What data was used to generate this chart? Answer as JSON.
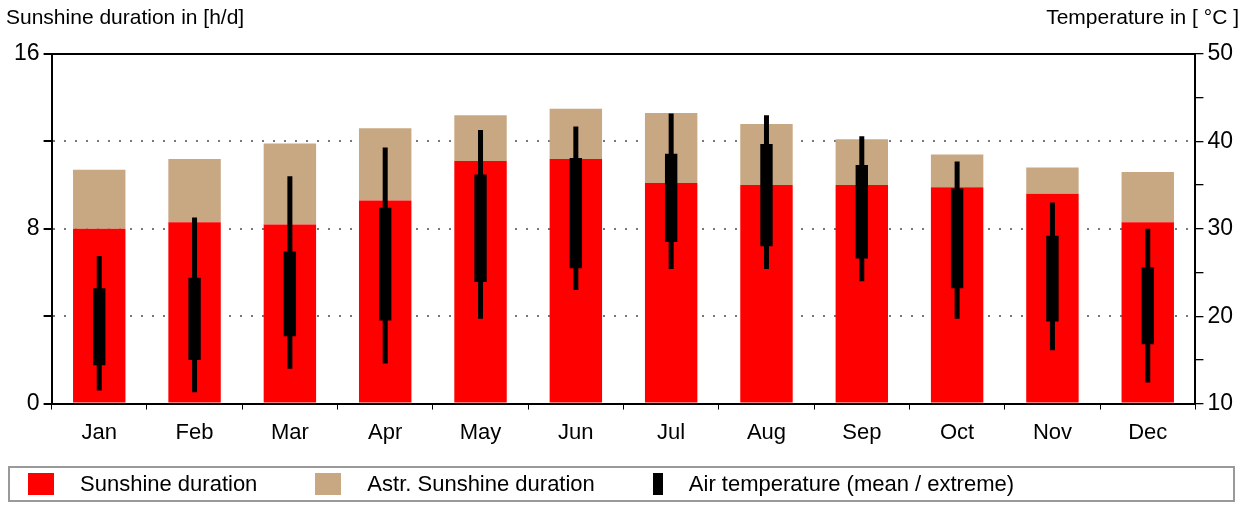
{
  "chart_data": {
    "type": "bar",
    "stacked": true,
    "ylabel": "Sunshine duration in [h/d]",
    "y2label": "Temperature in [ °C ]",
    "categories": [
      "Jan",
      "Feb",
      "Mar",
      "Apr",
      "May",
      "Jun",
      "Jul",
      "Aug",
      "Sep",
      "Oct",
      "Nov",
      "Dec"
    ],
    "series": [
      {
        "name": "Sunshine duration",
        "color": "#ff0000",
        "values": [
          8.0,
          8.3,
          8.2,
          9.3,
          11.1,
          11.2,
          10.1,
          10.0,
          10.0,
          9.9,
          9.6,
          8.3
        ]
      },
      {
        "name": "Astr. Sunshine duration",
        "color": "#c8a882",
        "values": [
          2.7,
          2.9,
          3.7,
          3.3,
          2.1,
          2.3,
          3.2,
          2.8,
          2.1,
          1.5,
          1.2,
          2.3
        ]
      },
      {
        "name": "Air temperature (mean / extreme)",
        "type": "candlestick",
        "axis": "y2",
        "color": "#000000",
        "ohlc": [
          [
            14.4,
            26.9,
            11.5,
            23.2
          ],
          [
            15.0,
            31.3,
            11.3,
            24.4
          ],
          [
            17.7,
            36.0,
            14.0,
            27.4
          ],
          [
            19.5,
            39.3,
            14.6,
            32.4
          ],
          [
            23.9,
            41.3,
            19.7,
            36.2
          ],
          [
            25.5,
            41.7,
            23.0,
            38.1
          ],
          [
            28.5,
            43.2,
            25.4,
            38.6
          ],
          [
            28.0,
            43.0,
            25.4,
            39.7
          ],
          [
            26.6,
            40.6,
            24.0,
            37.3
          ],
          [
            23.2,
            37.7,
            19.7,
            34.6
          ],
          [
            19.4,
            33.0,
            16.1,
            29.2
          ],
          [
            16.8,
            30.0,
            12.4,
            25.6
          ]
        ]
      }
    ],
    "ylim": [
      0,
      16
    ],
    "yticks": [
      0,
      {
        "value": 4,
        "label": null
      },
      8,
      {
        "value": 12,
        "label": null
      },
      16
    ],
    "y2lim": [
      10,
      50
    ],
    "y2ticks": [
      10,
      {
        "value": 15,
        "label": null
      },
      20,
      {
        "value": 25,
        "label": null
      },
      30,
      {
        "value": 35,
        "label": null
      },
      40,
      {
        "value": 45,
        "label": null
      },
      50
    ],
    "grid": "y",
    "line_style": "dotted",
    "legend": "bottom"
  }
}
